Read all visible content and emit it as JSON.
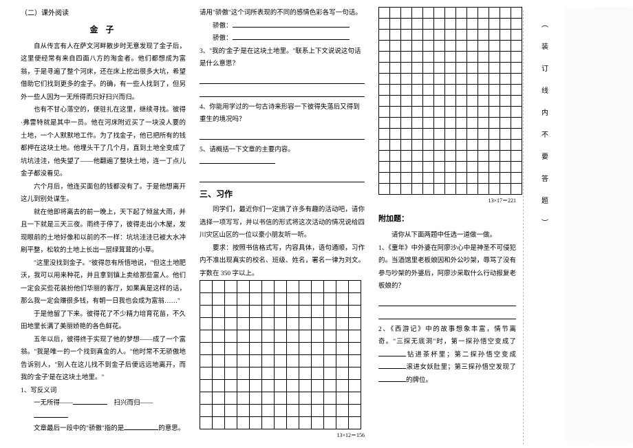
{
  "col1": {
    "section_label": "（二）课外阅读",
    "title": "金 子",
    "paragraphs": [
      "自从传言有人在萨文河畔散步时无意发现了金子后，这里便经常有来自四面八方的淘金者。他们都想成为富翁，于是寻遍了整个河床，还在床上挖出很多大坑，希望借助它们找到更多的金子。的确，有一些人找到了，但另外一些人因为一无所得而只好扫兴而归。",
      "也有不甘心落空的，便驻扎在这里，继续寻找。彼得·弗雷特就是其中一员。他在河床附近买了一块没人要的土地，一个人默默地工作。为了找金子，他已把所有的钱都押在这块土地。他埋头干了几个月，直到土地全变成了坑坑洼洼，他失望了——他翻遍了整块土地，连一丁点儿金子都没看见。",
      "六个月后，他连买面包的钱都没有了。于是他想离开这儿到别处谋生。",
      "就在他即将离去的前一晚上，天下起了倾盆大雨，并且一下就是三天三夜。雨终于停了，彼得走出小木屋，发现眼前的土地好像和以前的不一样：坑坑洼洼已被大水冲刷平整，松软的土地上长出一层绿茸茸的小草。",
      "\"这里没找到金子。\"彼得忽有所悟地说，\"但这土地肥沃，我可以用来种花，并且拿到镇上卖给那些富人。他们一定会买些花装扮他们华丽的客厅，如果真是这样的话，那么我一定会赚很多钱，有朝一日我也会成为富翁……\"",
      "于是他留了下来。彼得花了不少精力培育花苗，不久田地里长满了美丽娇艳的各色鲜花。",
      "五年以后，彼得终于实现了他的梦想——成了一个富翁。\"我是唯一的一个找到真金的人。\"他时常不无骄傲地告诉别人，\"别人在这儿找不到金子后便远远地离开，而我的'金子'是在这块土地里。\""
    ],
    "q1_label": "1、写反义词",
    "q1_a_left": "一无所得——",
    "q1_b_left": "扫兴而归——",
    "q2_text": "文章最后一段中的\"骄傲\"指的是",
    "q2_tail": "的意思。"
  },
  "col2": {
    "q2b_text": "请用\"骄傲\"这个词所表现的不同的感情色彩各写一句话。",
    "q2b_label_a": "骄傲：",
    "q2b_label_b": "骄傲：",
    "q3_text": "3、\"我的'金子'是在这块土地里。\"联系上下文说说这句话是什么意思？",
    "q4_text": "4、你能用学过的一句古诗来形容一下彼得失落后又得到重生的境况吗？",
    "q5_text": "5、请概括一下文章的主要内容。",
    "section3": "三、习作",
    "essay_p1": "同学们，最近你们一定搞了许多有趣的活动吧，请你选择一项写写，并以书信的形式将这次活动的情况说给四川灾区山区的一位以豪小朋友听一听。",
    "essay_req": "要求：按照书信格式写，内容具体，语句通顺，习作内不准出现真实的校名、班级、姓名，署名一律为刘文。字数在 350 字以上。",
    "grid1": {
      "cols": 13,
      "rows": 12,
      "cell": 17,
      "caption": "13×12＝156"
    }
  },
  "col3": {
    "grid2": {
      "cols": 13,
      "rows": 17,
      "cell": 15,
      "caption": "13×17＝221"
    },
    "attach_title": "附加题：",
    "attach_intro": "请你从下面两题中任选一道做一做。",
    "attach_q1": "1、《童年》中外婆在阿廖沙心中是神圣不可侵犯的。当酒馆里老板娘因和外公吵架，辱骂了没有参与吵架的外婆后，阿廖沙采取什么行动报复老板娘的？",
    "attach_q2_a": "2、《西游记》中的故事想象丰富，情节离奇。\"三探无底洞\"时，第一探孙悟空变成了",
    "attach_q2_b": "钻进茶杯里；第二探孙悟空变成",
    "attach_q2_c": "滚进女妖肚里；第三探孙悟空发现了",
    "attach_q2_d": "的牌位。"
  },
  "col4": {
    "vertical_text": "（装订线内不要答题）"
  },
  "colors": {
    "text": "#000000",
    "grid_border": "#000000",
    "shade": "#f3f3f3"
  }
}
